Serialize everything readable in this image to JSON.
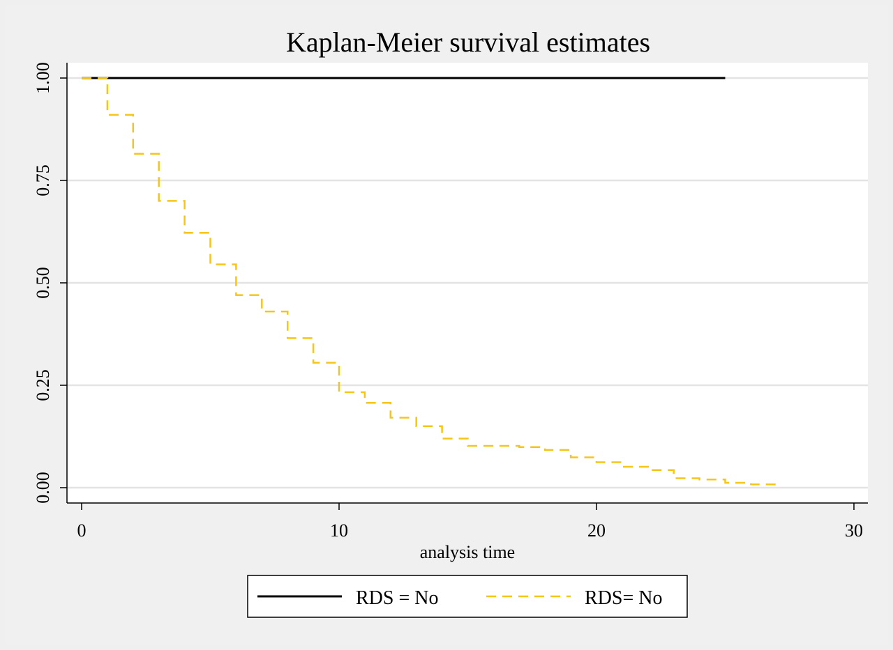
{
  "chart_data": {
    "type": "line",
    "title": "Kaplan-Meier survival estimates",
    "xlabel": "analysis time",
    "ylabel": "",
    "xlim": [
      0,
      30
    ],
    "ylim": [
      0,
      1
    ],
    "x_ticks": [
      0,
      10,
      20,
      30
    ],
    "x_tick_labels": [
      "0",
      "10",
      "20",
      "30"
    ],
    "y_ticks": [
      0,
      0.25,
      0.5,
      0.75,
      1
    ],
    "y_tick_labels": [
      "0.00",
      "0.25",
      "0.50",
      "0.75",
      "1.00"
    ],
    "grid": "horizontal",
    "legend_position": "bottom",
    "step": true,
    "series": [
      {
        "name": "RDS = No",
        "color": "#000000",
        "label_color": "#f5c518",
        "dash": "solid",
        "x": [
          0,
          25
        ],
        "y": [
          1.0,
          1.0
        ]
      },
      {
        "name": "RDS= No",
        "color": "#f5c518",
        "label_color": "#000000",
        "dash": "dashed",
        "x": [
          0,
          1,
          2,
          3,
          4,
          5,
          6,
          7,
          8,
          9,
          10,
          11,
          12,
          13,
          14,
          15,
          17,
          18,
          19,
          20,
          21,
          22,
          23,
          24,
          25,
          26,
          27
        ],
        "y": [
          1.0,
          0.91,
          0.815,
          0.7,
          0.622,
          0.545,
          0.47,
          0.43,
          0.365,
          0.305,
          0.233,
          0.207,
          0.171,
          0.15,
          0.12,
          0.102,
          0.099,
          0.092,
          0.074,
          0.062,
          0.051,
          0.043,
          0.023,
          0.02,
          0.012,
          0.008,
          0.0
        ]
      }
    ]
  }
}
